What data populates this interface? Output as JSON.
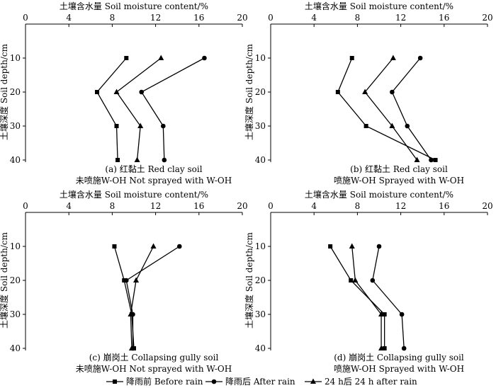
{
  "legend": {
    "items": [
      {
        "label": "降雨前 Before rain",
        "marker": "square"
      },
      {
        "label": "降雨后 After rain",
        "marker": "circle"
      },
      {
        "label": "24 h后 24 h after rain",
        "marker": "triangle"
      }
    ]
  },
  "chart_data": [
    {
      "type": "line",
      "title_line1": "(a) 红黏土 Red clay soil",
      "title_line2": "未喷施W-OH Not sprayed with W-OH",
      "xlabel": "土壤含水量 Soil moisture content/%",
      "ylabel": "土壤深度 Soil depth/cm",
      "xlim": [
        0,
        20
      ],
      "ylim": [
        0,
        40
      ],
      "x_ticks": [
        "0",
        "4",
        "8",
        "12",
        "16",
        "20"
      ],
      "y_ticks": [
        "10",
        "20",
        "30",
        "40"
      ],
      "depth": [
        10,
        20,
        30,
        40
      ],
      "series": [
        {
          "name": "降雨前 Before rain",
          "marker": "square",
          "values": [
            9.3,
            6.6,
            8.4,
            8.5
          ]
        },
        {
          "name": "降雨后 After rain",
          "marker": "circle",
          "values": [
            16.5,
            10.7,
            12.7,
            12.8
          ]
        },
        {
          "name": "24 h后 24 h after rain",
          "marker": "triangle",
          "values": [
            12.5,
            8.4,
            10.6,
            10.3
          ]
        }
      ]
    },
    {
      "type": "line",
      "title_line1": "(b) 红黏土 Red clay soil",
      "title_line2": "喷施W-OH Sprayed with W-OH",
      "xlabel": "土壤含水量 Soil moisture content/%",
      "ylabel": "土壤深度 Soil depth/cm",
      "xlim": [
        0,
        20
      ],
      "ylim": [
        0,
        40
      ],
      "x_ticks": [
        "0",
        "4",
        "8",
        "12",
        "16",
        "20"
      ],
      "y_ticks": [
        "10",
        "20",
        "30",
        "40"
      ],
      "depth": [
        10,
        20,
        30,
        40
      ],
      "series": [
        {
          "name": "降雨前 Before rain",
          "marker": "square",
          "values": [
            7.5,
            6.2,
            8.8,
            15.2
          ]
        },
        {
          "name": "降雨后 After rain",
          "marker": "circle",
          "values": [
            13.8,
            11.2,
            12.6,
            14.8
          ]
        },
        {
          "name": "24 h后 24 h after rain",
          "marker": "triangle",
          "values": [
            11.3,
            8.7,
            11.2,
            13.5
          ]
        }
      ]
    },
    {
      "type": "line",
      "title_line1": "(c) 崩岗土 Collapsing gully soil",
      "title_line2": "未喷施W-OH Not sprayed with W-OH",
      "xlabel": "土壤含水量 Soil moisture content/%",
      "ylabel": "土壤深度 Soil depth/cm",
      "xlim": [
        0,
        20
      ],
      "ylim": [
        0,
        40
      ],
      "x_ticks": [
        "0",
        "4",
        "8",
        "12",
        "16",
        "20"
      ],
      "y_ticks": [
        "10",
        "20",
        "30",
        "40"
      ],
      "depth": [
        10,
        20,
        30,
        40
      ],
      "series": [
        {
          "name": "降雨前 Before rain",
          "marker": "square",
          "values": [
            8.2,
            9.1,
            9.8,
            10.0
          ]
        },
        {
          "name": "降雨后 After rain",
          "marker": "circle",
          "values": [
            14.2,
            9.3,
            9.9,
            9.9
          ]
        },
        {
          "name": "24 h后 24 h after rain",
          "marker": "triangle",
          "values": [
            11.8,
            10.2,
            9.7,
            9.8
          ]
        }
      ]
    },
    {
      "type": "line",
      "title_line1": "(d) 崩岗土 Collapsing gully soil",
      "title_line2": "喷施W-OH Sprayed with W-OH",
      "xlabel": "土壤含水量 Soil moisture content/%",
      "ylabel": "土壤深度 Soil depth/cm",
      "xlim": [
        0,
        20
      ],
      "ylim": [
        0,
        40
      ],
      "x_ticks": [
        "0",
        "4",
        "8",
        "12",
        "16",
        "20"
      ],
      "y_ticks": [
        "10",
        "20",
        "30",
        "40"
      ],
      "depth": [
        10,
        20,
        30,
        40
      ],
      "series": [
        {
          "name": "降雨前 Before rain",
          "marker": "square",
          "values": [
            5.5,
            7.4,
            10.5,
            10.5
          ]
        },
        {
          "name": "降雨后 After rain",
          "marker": "circle",
          "values": [
            10.0,
            9.4,
            12.1,
            12.3
          ]
        },
        {
          "name": "24 h后 24 h after rain",
          "marker": "triangle",
          "values": [
            7.5,
            7.8,
            10.2,
            10.2
          ]
        }
      ]
    }
  ]
}
